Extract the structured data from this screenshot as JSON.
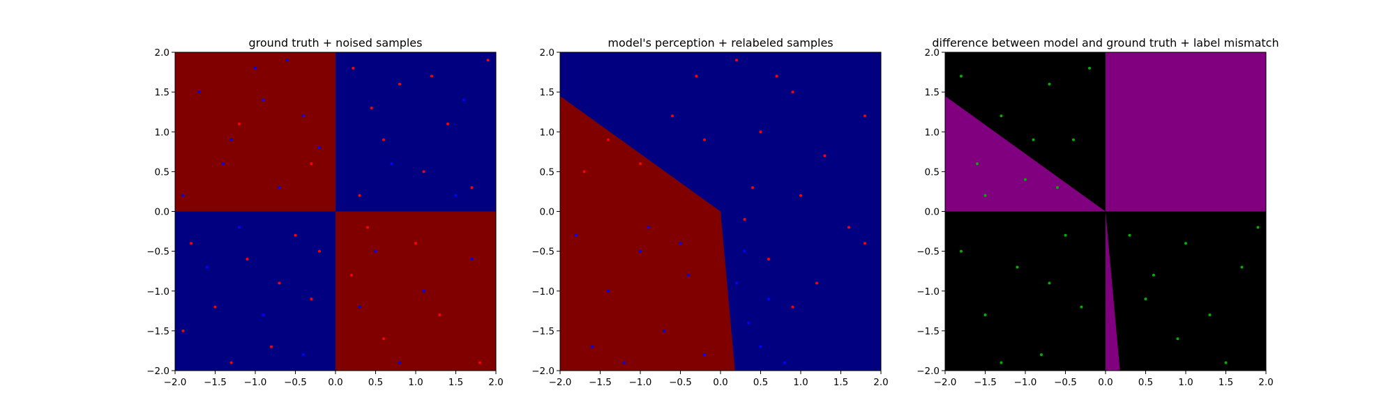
{
  "chart_data": [
    {
      "type": "scatter",
      "title": "ground truth + noised samples",
      "xlim": [
        -2.0,
        2.0
      ],
      "ylim": [
        -2.0,
        2.0
      ],
      "x_ticks": [
        "−2.0",
        "−1.5",
        "−1.0",
        "−0.5",
        "0.0",
        "0.5",
        "1.0",
        "1.5",
        "2.0"
      ],
      "y_ticks": [
        "−2.0",
        "−1.5",
        "−1.0",
        "−0.5",
        "0.0",
        "0.5",
        "1.0",
        "1.5",
        "2.0"
      ],
      "background": "decision regions: x*y < 0 dark red, x*y > 0 dark blue",
      "colors": {
        "region_a": "#800000",
        "region_b": "#000080",
        "points_a": "#ff0000",
        "points_b": "#0000ff"
      },
      "series": [
        {
          "color": "#ff0000",
          "points": [
            [
              0.22,
              1.8
            ],
            [
              0.45,
              1.3
            ],
            [
              0.6,
              0.9
            ],
            [
              0.8,
              1.6
            ],
            [
              1.1,
              0.5
            ],
            [
              1.4,
              1.1
            ],
            [
              1.7,
              0.3
            ],
            [
              1.9,
              1.9
            ],
            [
              0.3,
              0.2
            ],
            [
              1.2,
              1.7
            ],
            [
              -1.8,
              -0.4
            ],
            [
              -1.5,
              -1.2
            ],
            [
              -1.1,
              -0.6
            ],
            [
              -0.8,
              -1.7
            ],
            [
              -0.5,
              -0.3
            ],
            [
              -0.3,
              -1.1
            ],
            [
              -1.3,
              -1.9
            ],
            [
              -0.7,
              -0.9
            ],
            [
              -1.9,
              -1.5
            ],
            [
              -0.2,
              -0.5
            ],
            [
              0.2,
              -0.8
            ],
            [
              0.6,
              -1.6
            ],
            [
              1.0,
              -0.4
            ],
            [
              1.3,
              -1.3
            ],
            [
              1.8,
              -1.9
            ],
            [
              0.4,
              -0.2
            ],
            [
              -0.3,
              0.6
            ],
            [
              -1.2,
              1.1
            ]
          ]
        },
        {
          "color": "#0000ff",
          "points": [
            [
              -1.7,
              1.5
            ],
            [
              -1.4,
              0.6
            ],
            [
              -1.0,
              1.8
            ],
            [
              -0.7,
              0.3
            ],
            [
              -0.4,
              1.2
            ],
            [
              -0.2,
              0.8
            ],
            [
              -1.9,
              0.2
            ],
            [
              -0.9,
              1.4
            ],
            [
              -1.3,
              0.9
            ],
            [
              -0.6,
              1.9
            ],
            [
              -1.6,
              -0.7
            ],
            [
              -0.9,
              -1.3
            ],
            [
              -0.4,
              -1.8
            ],
            [
              -1.2,
              -0.2
            ],
            [
              0.7,
              0.6
            ],
            [
              1.5,
              0.2
            ],
            [
              1.6,
              1.4
            ],
            [
              0.3,
              -1.2
            ],
            [
              1.1,
              -1.0
            ],
            [
              1.7,
              -0.6
            ],
            [
              0.8,
              -1.9
            ],
            [
              0.5,
              -0.5
            ]
          ]
        }
      ]
    },
    {
      "type": "scatter",
      "title": "model's perception + relabeled samples",
      "xlim": [
        -2.0,
        2.0
      ],
      "ylim": [
        -2.0,
        2.0
      ],
      "x_ticks": [
        "−2.0",
        "−1.5",
        "−1.0",
        "−0.5",
        "0.0",
        "0.5",
        "1.0",
        "1.5",
        "2.0"
      ],
      "y_ticks": [
        "−2.0",
        "−1.5",
        "−1.0",
        "−0.5",
        "0.0",
        "0.5",
        "1.0",
        "1.5",
        "2.0"
      ],
      "background": "dark red region bounded by (-2,1.45) to (0,0) to (0.18,-2); dark blue elsewhere",
      "region_red_polygon": [
        [
          -2.0,
          1.45
        ],
        [
          0.0,
          0.0
        ],
        [
          0.18,
          -2.0
        ],
        [
          -2.0,
          -2.0
        ]
      ],
      "colors": {
        "region_a": "#800000",
        "region_b": "#000080",
        "points_a": "#ff0000",
        "points_b": "#0000ff"
      },
      "series": [
        {
          "color": "#ff0000",
          "points": [
            [
              -1.7,
              0.5
            ],
            [
              -1.4,
              0.9
            ],
            [
              -1.0,
              0.6
            ],
            [
              -0.6,
              1.2
            ],
            [
              -0.3,
              1.7
            ],
            [
              0.2,
              1.9
            ],
            [
              0.5,
              1.0
            ],
            [
              0.9,
              1.5
            ],
            [
              1.3,
              0.7
            ],
            [
              1.8,
              1.2
            ],
            [
              0.4,
              0.3
            ],
            [
              1.0,
              0.2
            ],
            [
              1.6,
              -0.2
            ],
            [
              0.6,
              -0.6
            ],
            [
              1.2,
              -0.9
            ],
            [
              1.8,
              -0.4
            ],
            [
              0.9,
              -1.2
            ],
            [
              0.3,
              -0.1
            ],
            [
              -0.2,
              0.9
            ],
            [
              0.7,
              1.7
            ]
          ]
        },
        {
          "color": "#0000ff",
          "points": [
            [
              -1.8,
              -0.3
            ],
            [
              -1.4,
              -1.0
            ],
            [
              -1.0,
              -0.5
            ],
            [
              -0.7,
              -1.5
            ],
            [
              -0.4,
              -0.8
            ],
            [
              -0.2,
              -1.8
            ],
            [
              -1.6,
              -1.7
            ],
            [
              -0.9,
              -0.2
            ],
            [
              0.2,
              -0.9
            ],
            [
              0.35,
              -1.4
            ],
            [
              0.5,
              -1.7
            ],
            [
              0.6,
              -1.1
            ],
            [
              0.8,
              -1.9
            ],
            [
              0.3,
              -0.5
            ],
            [
              -1.2,
              -1.9
            ],
            [
              -0.5,
              -0.4
            ]
          ]
        }
      ]
    },
    {
      "type": "scatter",
      "title": "difference between model and ground truth + label mismatch",
      "xlim": [
        -2.0,
        2.0
      ],
      "ylim": [
        -2.0,
        2.0
      ],
      "x_ticks": [
        "−2.0",
        "−1.5",
        "−1.0",
        "−0.5",
        "0.0",
        "0.5",
        "1.0",
        "1.5",
        "2.0"
      ],
      "y_ticks": [
        "−2.0",
        "−1.5",
        "−1.0",
        "−0.5",
        "0.0",
        "0.5",
        "1.0",
        "1.5",
        "2.0"
      ],
      "background": "black with purple mismatch regions",
      "mismatch_regions": [
        [
          [
            0.0,
            0.0
          ],
          [
            2.0,
            0.0
          ],
          [
            2.0,
            2.0
          ],
          [
            0.0,
            2.0
          ]
        ],
        [
          [
            -2.0,
            1.45
          ],
          [
            0.0,
            0.0
          ],
          [
            -2.0,
            0.0
          ]
        ],
        [
          [
            0.0,
            0.0
          ],
          [
            0.18,
            -2.0
          ],
          [
            0.0,
            -2.0
          ]
        ]
      ],
      "colors": {
        "background": "#000000",
        "mismatch": "#800080",
        "points": "#00b000"
      },
      "series": [
        {
          "color": "#00b000",
          "points": [
            [
              -1.6,
              0.6
            ],
            [
              -1.3,
              1.2
            ],
            [
              -1.0,
              0.4
            ],
            [
              -0.7,
              1.6
            ],
            [
              -0.4,
              0.9
            ],
            [
              -0.2,
              1.8
            ],
            [
              -1.8,
              1.7
            ],
            [
              -0.9,
              0.9
            ],
            [
              -1.5,
              0.2
            ],
            [
              -0.6,
              0.3
            ],
            [
              -1.8,
              -0.5
            ],
            [
              -1.5,
              -1.3
            ],
            [
              -1.1,
              -0.7
            ],
            [
              -0.8,
              -1.8
            ],
            [
              -0.5,
              -0.3
            ],
            [
              -0.3,
              -1.2
            ],
            [
              -1.3,
              -1.9
            ],
            [
              -0.7,
              -0.9
            ],
            [
              0.3,
              -0.3
            ],
            [
              0.6,
              -0.8
            ],
            [
              1.0,
              -0.4
            ],
            [
              1.3,
              -1.3
            ],
            [
              1.7,
              -0.7
            ],
            [
              0.9,
              -1.6
            ],
            [
              1.5,
              -1.9
            ],
            [
              0.5,
              -1.1
            ],
            [
              1.9,
              -0.2
            ]
          ]
        }
      ]
    }
  ]
}
